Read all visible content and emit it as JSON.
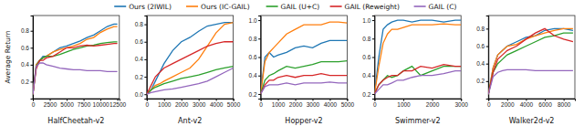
{
  "chart_data": [
    {
      "type": "line",
      "x_label": "HalfCheetah-v2",
      "y_label": "Average Return",
      "legend": "top",
      "x": [
        0,
        500,
        1000,
        1500,
        2000,
        3000,
        4000,
        5000,
        6000,
        7000,
        8000,
        9000,
        10000,
        11000,
        12000,
        12500
      ],
      "xlim": [
        0,
        12800
      ],
      "xticks": [
        0,
        2500,
        5000,
        7500,
        10000,
        12500
      ],
      "ylim": [
        0.0,
        0.98
      ],
      "yticks": [
        0.2,
        0.4,
        0.6,
        0.8
      ],
      "series": [
        {
          "name": "Ours (2IWIL)",
          "color": "#1f77b4",
          "values": [
            0.05,
            0.4,
            0.45,
            0.5,
            0.5,
            0.55,
            0.6,
            0.62,
            0.65,
            0.68,
            0.72,
            0.75,
            0.8,
            0.85,
            0.88,
            0.88
          ]
        },
        {
          "name": "Ours (IC-GAIL)",
          "color": "#ff7f0e",
          "values": [
            0.05,
            0.4,
            0.45,
            0.48,
            0.5,
            0.55,
            0.58,
            0.6,
            0.62,
            0.65,
            0.7,
            0.72,
            0.78,
            0.82,
            0.85,
            0.85
          ]
        },
        {
          "name": "GAIL (U+C)",
          "color": "#2ca02c",
          "values": [
            0.05,
            0.38,
            0.45,
            0.48,
            0.5,
            0.5,
            0.52,
            0.55,
            0.58,
            0.6,
            0.62,
            0.63,
            0.65,
            0.66,
            0.67,
            0.67
          ]
        },
        {
          "name": "GAIL (Reweight)",
          "color": "#d62728",
          "values": [
            0.05,
            0.35,
            0.45,
            0.45,
            0.48,
            0.5,
            0.55,
            0.6,
            0.6,
            0.62,
            0.63,
            0.62,
            0.63,
            0.64,
            0.65,
            0.65
          ]
        },
        {
          "name": "GAIL (C)",
          "color": "#9467bd",
          "values": [
            0.05,
            0.38,
            0.42,
            0.42,
            0.4,
            0.38,
            0.36,
            0.35,
            0.34,
            0.34,
            0.33,
            0.33,
            0.33,
            0.32,
            0.32,
            0.32
          ]
        }
      ]
    },
    {
      "type": "line",
      "x_label": "Ant-v2",
      "x": [
        0,
        250,
        500,
        750,
        1000,
        1500,
        2000,
        2500,
        3000,
        3500,
        4000,
        4500,
        5000
      ],
      "xlim": [
        0,
        5000
      ],
      "xticks": [
        0,
        1000,
        2000,
        3000,
        4000,
        5000
      ],
      "ylim": [
        -0.05,
        0.9
      ],
      "yticks": [
        {
          "value": 0,
          "label": "0.0"
        },
        0.2,
        0.4,
        0.6,
        0.8
      ],
      "series": [
        {
          "color": "#1f77b4",
          "values": [
            0.0,
            0.05,
            0.15,
            0.25,
            0.35,
            0.5,
            0.6,
            0.65,
            0.72,
            0.78,
            0.8,
            0.82,
            0.82
          ]
        },
        {
          "color": "#ff7f0e",
          "values": [
            0.0,
            0.05,
            0.1,
            0.12,
            0.15,
            0.2,
            0.25,
            0.3,
            0.4,
            0.55,
            0.7,
            0.8,
            0.82
          ]
        },
        {
          "color": "#2ca02c",
          "values": [
            0.0,
            0.05,
            0.08,
            0.1,
            0.12,
            0.15,
            0.18,
            0.2,
            0.22,
            0.25,
            0.28,
            0.3,
            0.32
          ]
        },
        {
          "color": "#d62728",
          "values": [
            0.0,
            0.1,
            0.2,
            0.25,
            0.3,
            0.35,
            0.4,
            0.45,
            0.5,
            0.55,
            0.58,
            0.6,
            0.6
          ]
        },
        {
          "color": "#9467bd",
          "values": [
            0.0,
            0.02,
            0.03,
            0.04,
            0.05,
            0.06,
            0.08,
            0.1,
            0.12,
            0.15,
            0.2,
            0.25,
            0.3
          ]
        }
      ]
    },
    {
      "type": "line",
      "x_label": "Hopper-v2",
      "x": [
        0,
        250,
        500,
        750,
        1000,
        1500,
        2000,
        2500,
        3000,
        3500,
        4000,
        4500,
        5000
      ],
      "xlim": [
        0,
        5000
      ],
      "xticks": [
        0,
        1000,
        2000,
        3000,
        4000,
        5000
      ],
      "ylim": [
        0.15,
        1.05
      ],
      "yticks": [
        0.2,
        0.4,
        0.6,
        0.8,
        {
          "value": 1,
          "label": "1.0"
        }
      ],
      "series": [
        {
          "color": "#1f77b4",
          "values": [
            0.2,
            0.6,
            0.65,
            0.6,
            0.62,
            0.65,
            0.7,
            0.72,
            0.7,
            0.75,
            0.78,
            0.78,
            0.78
          ]
        },
        {
          "color": "#ff7f0e",
          "values": [
            0.2,
            0.55,
            0.65,
            0.7,
            0.75,
            0.85,
            0.9,
            0.95,
            0.95,
            0.95,
            0.98,
            0.98,
            0.97
          ]
        },
        {
          "color": "#2ca02c",
          "values": [
            0.2,
            0.35,
            0.4,
            0.42,
            0.45,
            0.5,
            0.48,
            0.5,
            0.52,
            0.55,
            0.55,
            0.55,
            0.56
          ]
        },
        {
          "color": "#d62728",
          "values": [
            0.2,
            0.3,
            0.35,
            0.35,
            0.38,
            0.4,
            0.38,
            0.4,
            0.4,
            0.42,
            0.4,
            0.4,
            0.4
          ]
        },
        {
          "color": "#9467bd",
          "values": [
            0.2,
            0.28,
            0.3,
            0.3,
            0.3,
            0.32,
            0.3,
            0.32,
            0.32,
            0.32,
            0.33,
            0.32,
            0.32
          ]
        }
      ]
    },
    {
      "type": "line",
      "x_label": "Swimmer-v2",
      "x": [
        0,
        150,
        300,
        450,
        600,
        800,
        1000,
        1300,
        1600,
        2000,
        2400,
        2800,
        3000
      ],
      "xlim": [
        0,
        3000
      ],
      "xticks": [
        0,
        1000,
        2000,
        3000
      ],
      "ylim": [
        0.15,
        1.05
      ],
      "yticks": [
        0.2,
        0.4,
        0.6,
        0.8,
        {
          "value": 1,
          "label": "1.0"
        }
      ],
      "series": [
        {
          "color": "#1f77b4",
          "values": [
            0.2,
            0.6,
            0.9,
            0.95,
            0.98,
            1.0,
            1.0,
            0.98,
            1.0,
            1.0,
            0.98,
            1.0,
            1.0
          ]
        },
        {
          "color": "#ff7f0e",
          "values": [
            0.2,
            0.5,
            0.75,
            0.85,
            0.9,
            0.9,
            0.92,
            0.95,
            0.95,
            0.95,
            0.96,
            0.95,
            0.95
          ]
        },
        {
          "color": "#2ca02c",
          "values": [
            0.2,
            0.3,
            0.35,
            0.4,
            0.38,
            0.4,
            0.45,
            0.5,
            0.4,
            0.45,
            0.5,
            0.5,
            0.5
          ]
        },
        {
          "color": "#d62728",
          "values": [
            0.2,
            0.3,
            0.35,
            0.38,
            0.4,
            0.4,
            0.45,
            0.45,
            0.5,
            0.48,
            0.52,
            0.5,
            0.5
          ]
        },
        {
          "color": "#9467bd",
          "values": [
            0.2,
            0.25,
            0.3,
            0.3,
            0.32,
            0.35,
            0.35,
            0.38,
            0.4,
            0.4,
            0.42,
            0.45,
            0.45
          ]
        }
      ]
    },
    {
      "type": "line",
      "x_label": "Walker2d-v2",
      "x": [
        0,
        500,
        1000,
        1500,
        2000,
        3000,
        4000,
        5000,
        6000,
        7000,
        8000,
        9000
      ],
      "xlim": [
        0,
        9200
      ],
      "xticks": [
        0,
        2000,
        4000,
        6000,
        8000
      ],
      "ylim": [
        0.0,
        0.95
      ],
      "yticks": [
        0.2,
        0.4,
        0.6,
        0.8
      ],
      "series": [
        {
          "color": "#1f77b4",
          "values": [
            0.05,
            0.35,
            0.5,
            0.55,
            0.6,
            0.65,
            0.7,
            0.72,
            0.78,
            0.8,
            0.8,
            0.78
          ]
        },
        {
          "color": "#ff7f0e",
          "values": [
            0.05,
            0.35,
            0.5,
            0.55,
            0.6,
            0.62,
            0.68,
            0.72,
            0.75,
            0.78,
            0.8,
            0.8
          ]
        },
        {
          "color": "#2ca02c",
          "values": [
            0.05,
            0.3,
            0.4,
            0.45,
            0.5,
            0.55,
            0.6,
            0.65,
            0.7,
            0.72,
            0.75,
            0.75
          ]
        },
        {
          "color": "#d62728",
          "values": [
            0.05,
            0.3,
            0.45,
            0.5,
            0.55,
            0.6,
            0.68,
            0.75,
            0.8,
            0.72,
            0.68,
            0.65
          ]
        },
        {
          "color": "#9467bd",
          "values": [
            0.05,
            0.25,
            0.3,
            0.32,
            0.33,
            0.33,
            0.33,
            0.32,
            0.32,
            0.32,
            0.32,
            0.32
          ]
        }
      ]
    }
  ]
}
